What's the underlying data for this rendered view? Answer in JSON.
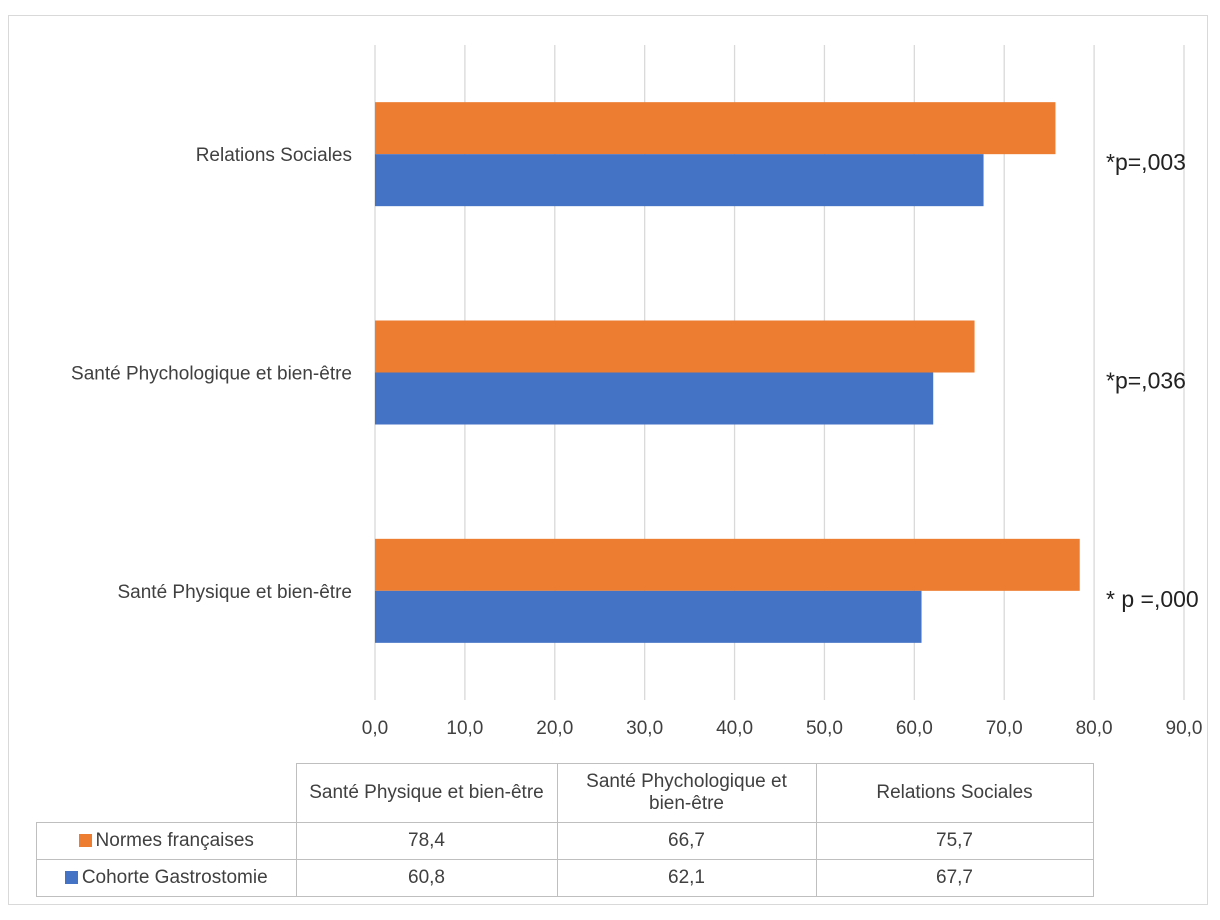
{
  "chart_data": {
    "type": "bar",
    "orientation": "horizontal",
    "categories": [
      "Santé Physique et bien-être",
      "Santé Phychologique et bien-être",
      "Relations Sociales"
    ],
    "series": [
      {
        "name": "Normes françaises",
        "color": "#ed7d31",
        "values": [
          78.4,
          66.7,
          75.7
        ]
      },
      {
        "name": "Cohorte Gastrostomie",
        "color": "#4472c4",
        "values": [
          60.8,
          62.1,
          67.7
        ]
      }
    ],
    "xlim": [
      0,
      90
    ],
    "x_ticks": [
      "0,0",
      "10,0",
      "20,0",
      "30,0",
      "40,0",
      "50,0",
      "60,0",
      "70,0",
      "80,0",
      "90,0"
    ],
    "annotations": [
      "* p =,000",
      "*p=,036",
      "*p=,003"
    ],
    "grid": "vertical",
    "legend": "data table below chart"
  },
  "table": {
    "headers": [
      "Santé Physique et bien-être",
      "Santé Phychologique et bien-être",
      "Relations Sociales"
    ],
    "rows": [
      {
        "label": "Normes françaises",
        "color": "#ed7d31",
        "values": [
          "78,4",
          "66,7",
          "75,7"
        ]
      },
      {
        "label": "Cohorte Gastrostomie",
        "color": "#4472c4",
        "values": [
          "60,8",
          "62,1",
          "67,7"
        ]
      }
    ]
  }
}
